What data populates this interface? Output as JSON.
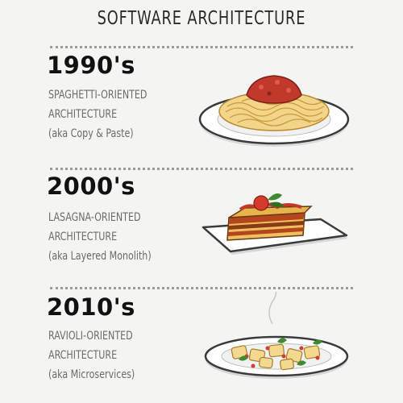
{
  "title": "SOFTWARE ARCHITECTURE",
  "sections": [
    {
      "era": "1990's",
      "lines": [
        "SPAGHETTI-ORIENTED",
        "ARCHITECTURE",
        "(aka Copy & Paste)"
      ],
      "dish": "spaghetti-plate"
    },
    {
      "era": "2000's",
      "lines": [
        "LASAGNA-ORIENTED",
        "ARCHITECTURE",
        "(aka Layered Monolith)"
      ],
      "dish": "lasagna-plate"
    },
    {
      "era": "2010's",
      "lines": [
        "RAVIOLI-ORIENTED",
        "ARCHITECTURE",
        "(aka Microservices)"
      ],
      "dish": "ravioli-plate"
    }
  ]
}
